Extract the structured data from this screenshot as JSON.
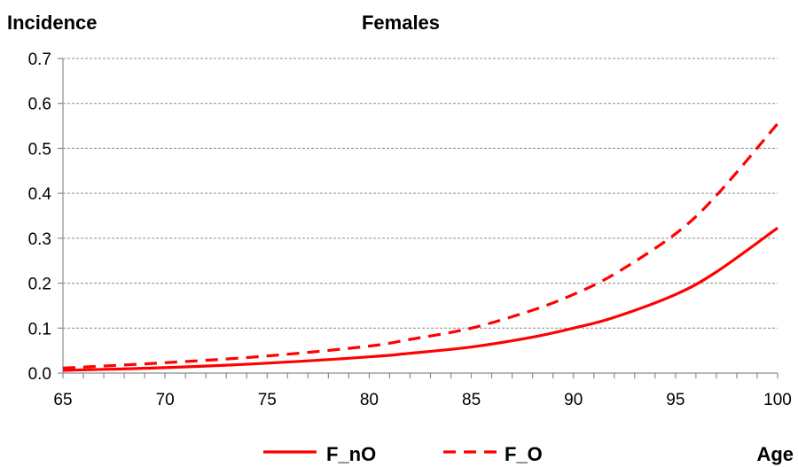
{
  "chart_data": {
    "type": "line",
    "title": "Females",
    "ylabel": "Incidence",
    "xlabel": "Age",
    "xlim": [
      65,
      100
    ],
    "ylim": [
      0,
      0.7
    ],
    "xticks": [
      "65",
      "70",
      "75",
      "80",
      "85",
      "90",
      "95",
      "100"
    ],
    "yticks": [
      "0.0",
      "0.1",
      "0.2",
      "0.3",
      "0.4",
      "0.5",
      "0.6",
      "0.7"
    ],
    "grid": true,
    "legend_position": "bottom",
    "series": [
      {
        "name": "F_nO",
        "style": "solid",
        "color": "#ff0000",
        "x": [
          65,
          70,
          75,
          80,
          82,
          85,
          88,
          90,
          92,
          95,
          97,
          100
        ],
        "y": [
          0.006,
          0.012,
          0.022,
          0.036,
          0.044,
          0.058,
          0.08,
          0.1,
          0.124,
          0.175,
          0.225,
          0.323
        ]
      },
      {
        "name": "F_O",
        "style": "dashed",
        "color": "#ff0000",
        "x": [
          65,
          70,
          75,
          80,
          82,
          85,
          88,
          90,
          92,
          95,
          97,
          100
        ],
        "y": [
          0.011,
          0.023,
          0.038,
          0.06,
          0.075,
          0.1,
          0.14,
          0.175,
          0.22,
          0.31,
          0.395,
          0.555
        ]
      }
    ]
  }
}
